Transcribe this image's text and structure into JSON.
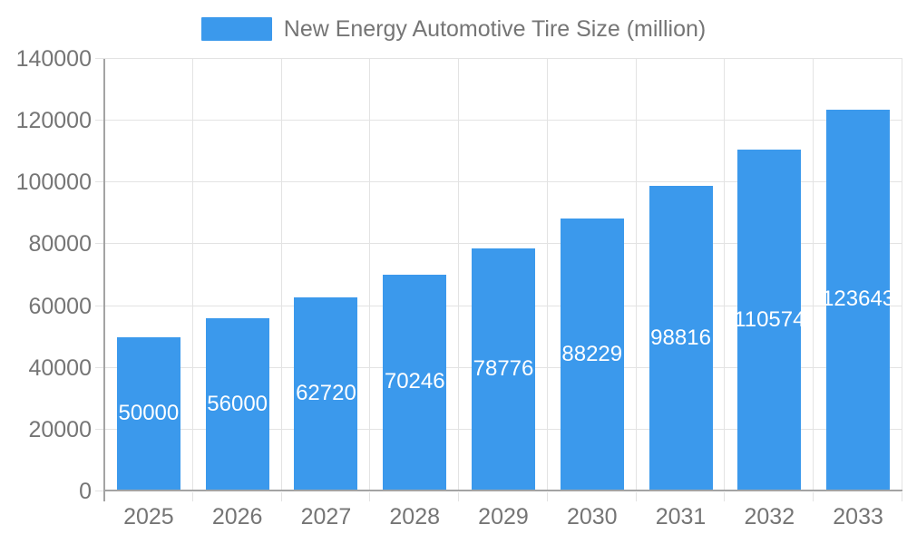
{
  "chart_data": {
    "type": "bar",
    "title": "New Energy Automotive Tire Size (million)",
    "legend_position": "top",
    "categories": [
      "2025",
      "2026",
      "2027",
      "2028",
      "2029",
      "2030",
      "2031",
      "2032",
      "2033"
    ],
    "series": [
      {
        "name": "New Energy Automotive Tire Size (million)",
        "values": [
          50000,
          56000,
          62720,
          70246,
          78776,
          88229,
          98816,
          110574,
          123643
        ]
      }
    ],
    "xlabel": "",
    "ylabel": "",
    "ylim": [
      0,
      140000
    ],
    "y_ticks": [
      0,
      20000,
      40000,
      60000,
      80000,
      100000,
      120000,
      140000
    ],
    "grid": true,
    "value_labels": "inside-center",
    "colors": {
      "bar": "#3B99EC",
      "gridline": "#E3E3E3",
      "axis_line": "#A3A3A3",
      "tick_text": "#757575",
      "value_label_text": "#FFFFFF",
      "background": "#FFFFFF"
    }
  }
}
